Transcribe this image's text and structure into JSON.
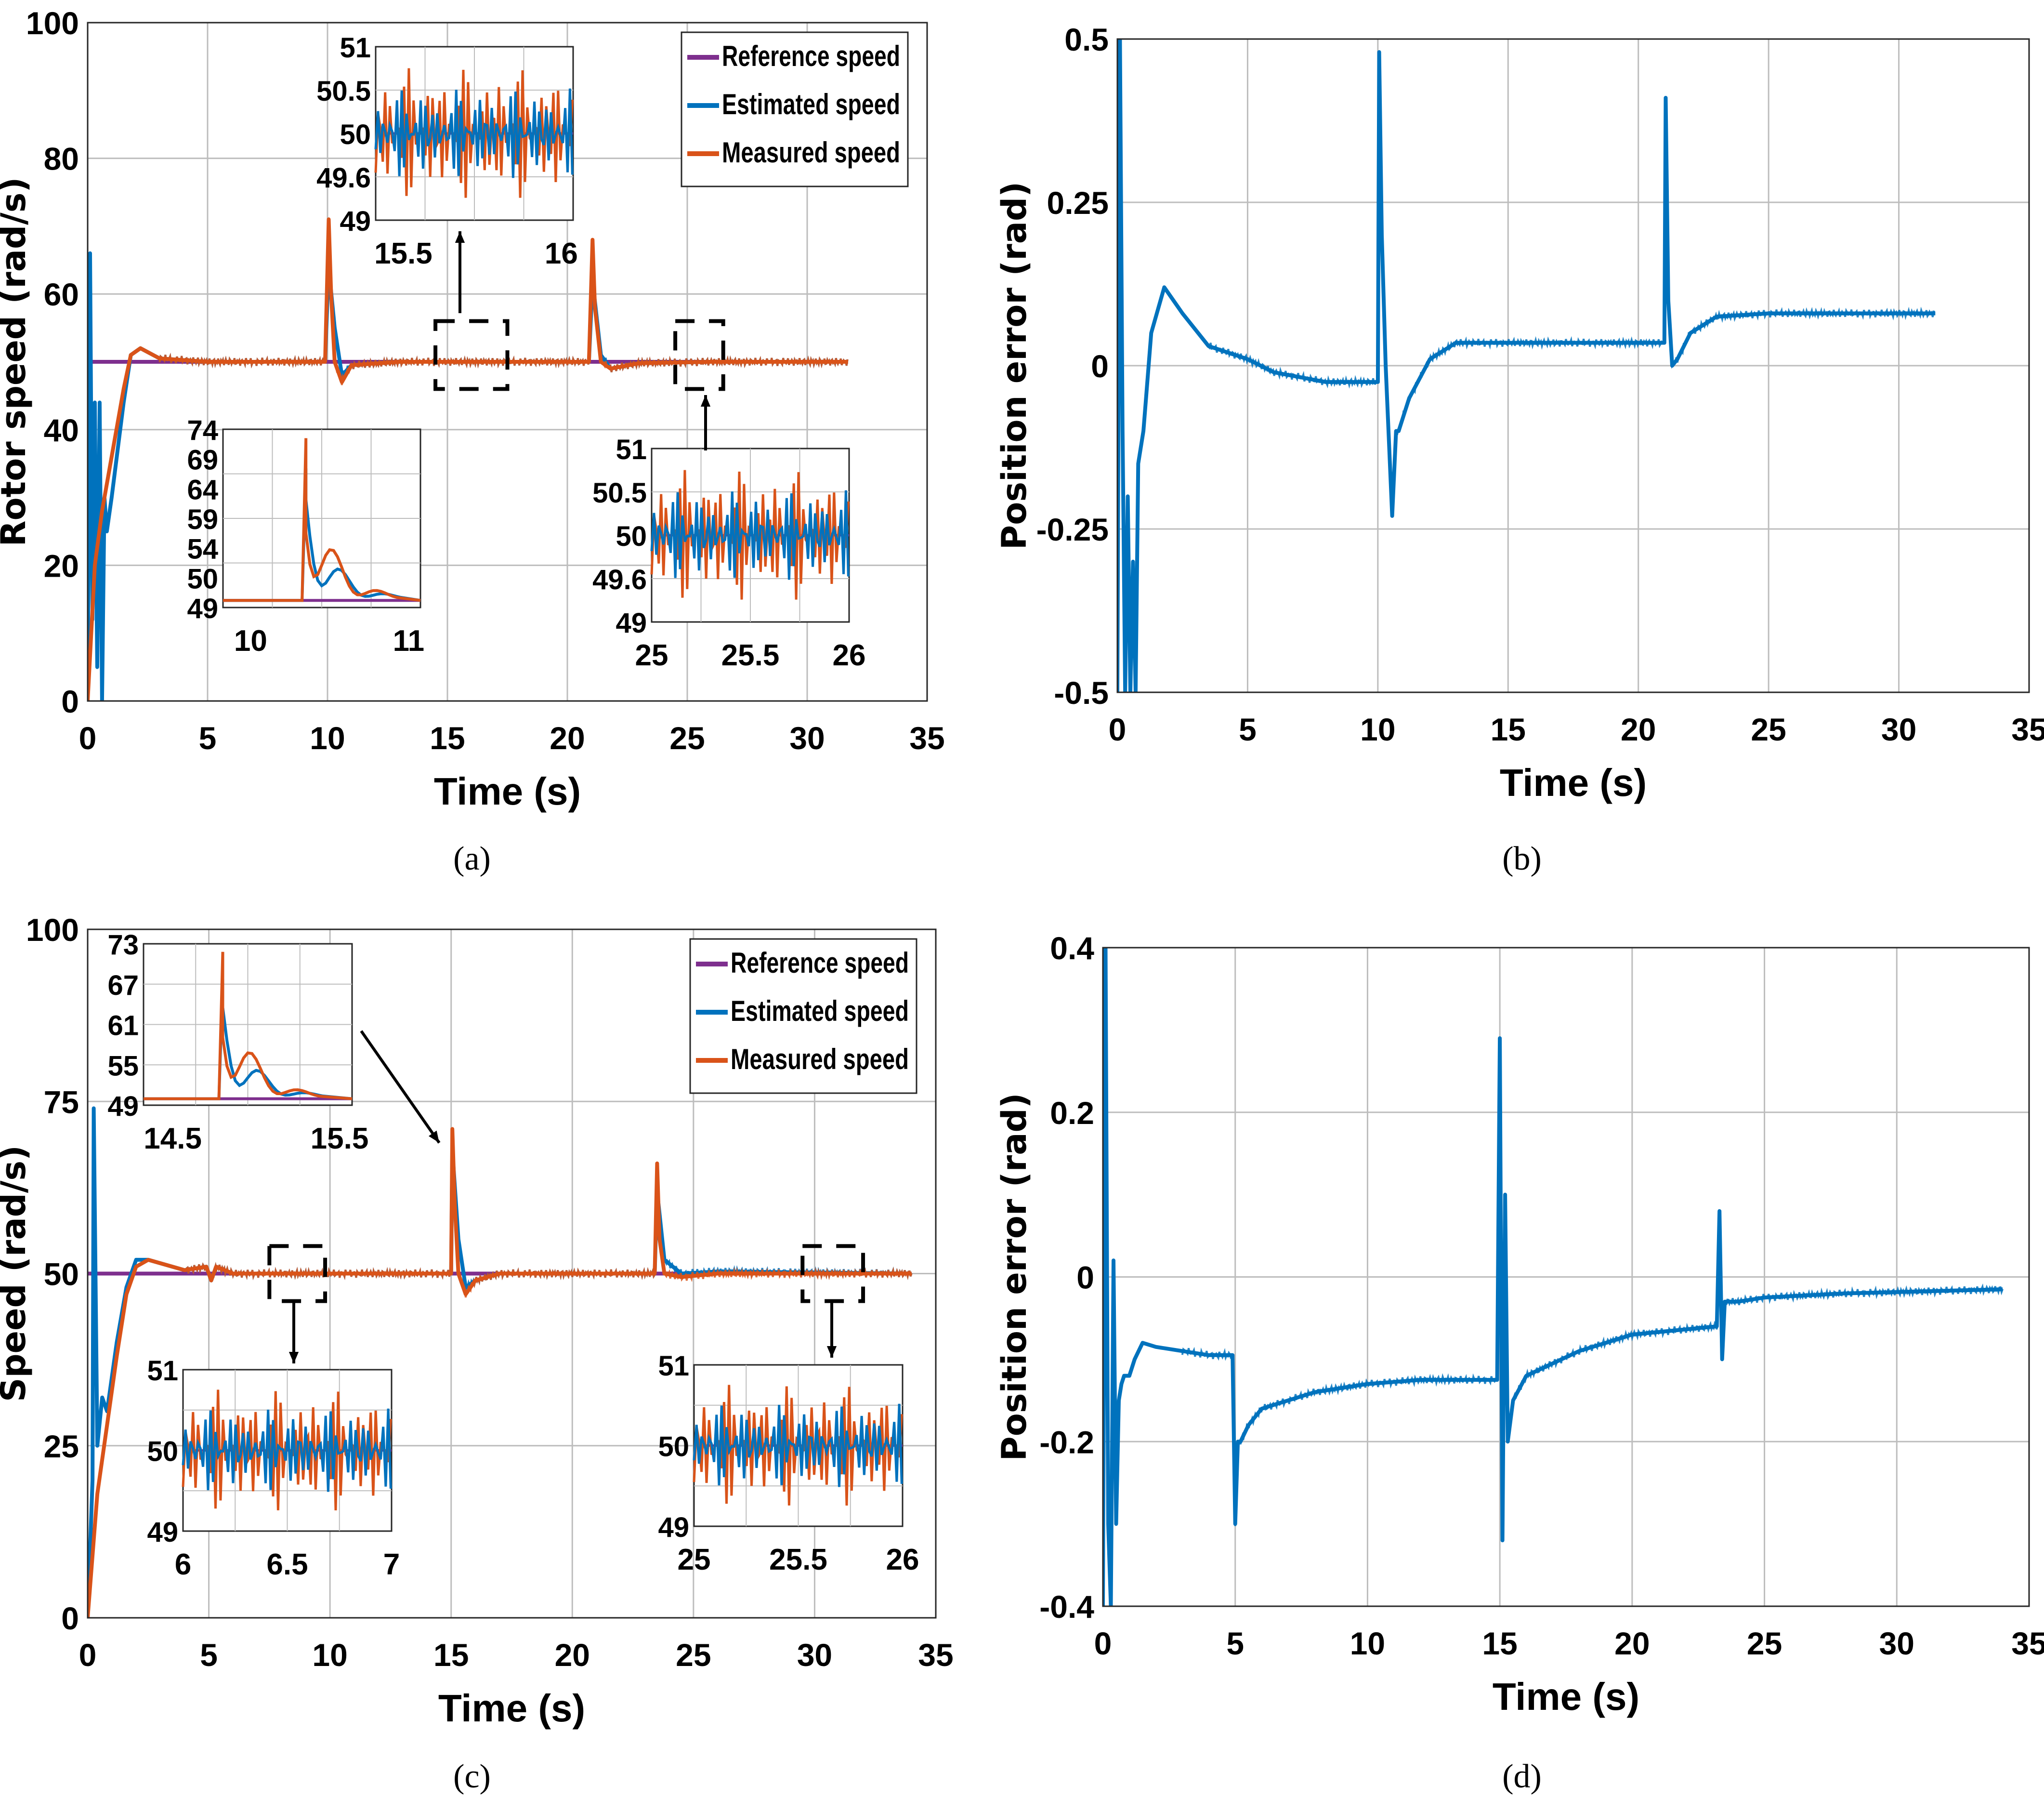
{
  "figure": {
    "panels": [
      "a",
      "b",
      "c",
      "d"
    ]
  },
  "chart_data": [
    {
      "id": "a",
      "caption": "(a)",
      "type": "line",
      "xlabel": "Time (s)",
      "ylabel": "Rotor speed (rad/s)",
      "xlim": [
        0,
        35
      ],
      "ylim": [
        0,
        100
      ],
      "xticks": [
        0,
        5,
        10,
        15,
        20,
        25,
        30,
        35
      ],
      "yticks": [
        0,
        20,
        40,
        60,
        80,
        100
      ],
      "grid": true,
      "legend_position": "top-right",
      "series": [
        {
          "name": "Reference speed",
          "color": "#7E2F8E",
          "x": [
            0,
            10,
            10.01,
            21,
            21.01,
            31.7
          ],
          "y": [
            50,
            50,
            50,
            50,
            50,
            50
          ]
        },
        {
          "name": "Estimated speed",
          "color": "#0072BD",
          "x": [
            0,
            0.1,
            0.2,
            0.3,
            0.4,
            0.5,
            0.6,
            0.7,
            0.8,
            1.0,
            1.5,
            1.8,
            2.2,
            3,
            5,
            9.9,
            10.05,
            10.3,
            10.6,
            11,
            13,
            20.9,
            21.05,
            21.4,
            21.8,
            23,
            26,
            31.7
          ],
          "y": [
            0,
            66,
            12,
            44,
            5,
            44,
            0,
            30,
            25,
            30,
            44,
            51,
            52,
            50.5,
            50,
            50,
            64,
            55,
            48,
            49.5,
            50,
            50,
            62,
            51,
            49,
            49.8,
            50,
            50
          ]
        },
        {
          "name": "Measured speed",
          "color": "#D95319",
          "x": [
            0,
            0.3,
            0.6,
            1.0,
            1.5,
            1.8,
            2.2,
            3,
            5,
            9.9,
            10.05,
            10.15,
            10.3,
            10.6,
            11,
            13,
            20.9,
            21.05,
            21.15,
            21.4,
            21.8,
            23,
            26,
            31.7
          ],
          "y": [
            0,
            20,
            28,
            36,
            46,
            51,
            52,
            50.5,
            50,
            50,
            71,
            60,
            50,
            47,
            49.5,
            50,
            50,
            68,
            58,
            50,
            49,
            49.8,
            50,
            50
          ]
        }
      ],
      "zoom_markers": [
        {
          "x": [
            14.5,
            17.5
          ],
          "y": [
            46,
            56
          ]
        },
        {
          "x": [
            24.5,
            26.5
          ],
          "y": [
            46,
            56
          ]
        }
      ],
      "insets": [
        {
          "position": "top-middle",
          "xticks": [
            "15.5",
            "16"
          ],
          "yticks": [
            "51",
            "50.5",
            "50",
            "49.6",
            "49"
          ],
          "ylim": [
            49,
            51
          ]
        },
        {
          "position": "bottom-left",
          "xticks": [
            "10",
            "11"
          ],
          "yticks": [
            "74",
            "69",
            "64",
            "59",
            "54",
            "50",
            "49"
          ],
          "ylim": [
            49,
            74
          ]
        },
        {
          "position": "bottom-right",
          "xticks": [
            "25",
            "25.5",
            "26"
          ],
          "yticks": [
            "51",
            "50.5",
            "50",
            "49.6",
            "49"
          ],
          "ylim": [
            49,
            51
          ]
        }
      ]
    },
    {
      "id": "b",
      "caption": "(b)",
      "type": "line",
      "xlabel": "Time (s)",
      "ylabel": "Position error (rad)",
      "xlim": [
        0,
        35
      ],
      "ylim": [
        -0.5,
        0.5
      ],
      "xticks": [
        0,
        5,
        10,
        15,
        20,
        25,
        30,
        35
      ],
      "yticks": [
        -0.5,
        -0.25,
        0,
        0.25,
        0.5
      ],
      "ytick_labels": [
        "-0.5",
        "-0.25",
        "0",
        "0.25",
        "0.5"
      ],
      "grid": true,
      "series": [
        {
          "name": "Position error",
          "color": "#0072BD",
          "x": [
            0,
            0.1,
            0.2,
            0.3,
            0.4,
            0.5,
            0.6,
            0.7,
            0.8,
            1.0,
            1.3,
            1.8,
            2.5,
            3.5,
            5,
            6,
            8,
            10,
            10.05,
            10.15,
            10.3,
            10.55,
            10.7,
            10.8,
            11.2,
            12,
            13,
            15,
            21,
            21.05,
            21.15,
            21.3,
            21.5,
            22,
            23,
            25,
            31.4
          ],
          "y": [
            -0.5,
            0.5,
            -0.1,
            -0.5,
            -0.2,
            -0.5,
            -0.3,
            -0.5,
            -0.15,
            -0.1,
            0.05,
            0.12,
            0.08,
            0.03,
            0.01,
            -0.01,
            -0.025,
            -0.025,
            0.48,
            0.2,
            0.0,
            -0.23,
            -0.1,
            -0.1,
            -0.05,
            0.01,
            0.035,
            0.035,
            0.035,
            0.41,
            0.1,
            0.0,
            0.01,
            0.05,
            0.075,
            0.08,
            0.08
          ]
        }
      ]
    },
    {
      "id": "c",
      "caption": "(c)",
      "type": "line",
      "xlabel": "Time (s)",
      "ylabel": "Speed (rad/s)",
      "xlim": [
        0,
        35
      ],
      "ylim": [
        0,
        100
      ],
      "xticks": [
        0,
        5,
        10,
        15,
        20,
        25,
        30,
        35
      ],
      "yticks": [
        0,
        25,
        50,
        75,
        100
      ],
      "grid": true,
      "legend_position": "top-right",
      "series": [
        {
          "name": "Reference speed",
          "color": "#7E2F8E",
          "x": [
            0,
            15,
            15.01,
            23.5,
            23.51,
            34
          ],
          "y": [
            50,
            50,
            50,
            50,
            50,
            50
          ]
        },
        {
          "name": "Estimated speed",
          "color": "#0072BD",
          "x": [
            0,
            0.2,
            0.25,
            0.4,
            0.6,
            0.8,
            1.2,
            1.6,
            2.0,
            2.5,
            4,
            4.9,
            5.1,
            5.3,
            6,
            15,
            15.05,
            15.3,
            15.6,
            16,
            17,
            23.4,
            23.5,
            23.8,
            24.5,
            26,
            34
          ],
          "y": [
            0,
            20,
            74,
            25,
            32,
            30,
            40,
            48,
            52,
            52,
            50.5,
            51,
            49,
            51,
            50,
            50,
            68,
            55,
            48,
            49,
            50,
            50,
            62,
            52,
            50,
            50.3,
            50
          ]
        },
        {
          "name": "Measured speed",
          "color": "#D95319",
          "x": [
            0,
            0.4,
            0.8,
            1.2,
            1.6,
            2.0,
            2.5,
            4,
            4.9,
            5.1,
            5.3,
            6,
            15,
            15.05,
            15.15,
            15.3,
            15.6,
            16,
            17,
            23.4,
            23.5,
            23.6,
            23.8,
            24.5,
            26,
            34
          ],
          "y": [
            0,
            18,
            28,
            38,
            47,
            51,
            52,
            50.5,
            51,
            49,
            51,
            50,
            50,
            71,
            60,
            50,
            47,
            49,
            50,
            50,
            66,
            55,
            50,
            49.5,
            50,
            50
          ]
        }
      ],
      "zoom_markers": [
        {
          "x": [
            7.5,
            9.8
          ],
          "y": [
            46,
            54
          ]
        },
        {
          "x": [
            29.5,
            32
          ],
          "y": [
            46,
            54
          ]
        }
      ],
      "insets": [
        {
          "position": "top-left",
          "xticks": [
            "14.5",
            "15.5"
          ],
          "yticks": [
            "73",
            "67",
            "61",
            "55",
            "49"
          ],
          "ylim": [
            49,
            73
          ]
        },
        {
          "position": "bottom-left",
          "xticks": [
            "6",
            "6.5",
            "7"
          ],
          "yticks": [
            "51",
            "50",
            "49"
          ],
          "ylim": [
            49,
            51
          ]
        },
        {
          "position": "bottom-right",
          "xticks": [
            "25",
            "25.5",
            "26"
          ],
          "yticks": [
            "51",
            "50",
            "49"
          ],
          "ylim": [
            49,
            51
          ]
        }
      ]
    },
    {
      "id": "d",
      "caption": "(d)",
      "type": "line",
      "xlabel": "Time (s)",
      "ylabel": "Position error (rad)",
      "xlim": [
        0,
        35
      ],
      "ylim": [
        -0.4,
        0.4
      ],
      "xticks": [
        0,
        5,
        10,
        15,
        20,
        25,
        30,
        35
      ],
      "yticks": [
        -0.4,
        -0.2,
        0,
        0.2,
        0.4
      ],
      "ytick_labels": [
        "-0.4",
        "-0.2",
        "0",
        "0.2",
        "0.4"
      ],
      "grid": true,
      "series": [
        {
          "name": "Position error",
          "color": "#0072BD",
          "x": [
            0,
            0.1,
            0.2,
            0.3,
            0.4,
            0.5,
            0.6,
            0.7,
            0.8,
            1.0,
            1.2,
            1.5,
            2.0,
            3,
            4,
            4.9,
            5.0,
            5.1,
            5.2,
            5.5,
            6,
            7,
            8,
            10,
            12,
            14.9,
            15.0,
            15.1,
            15.2,
            15.3,
            15.5,
            16,
            18,
            20,
            23.2,
            23.3,
            23.4,
            23.5,
            24,
            25,
            28,
            34
          ],
          "y": [
            -0.4,
            0.4,
            -0.3,
            -0.4,
            0.02,
            -0.3,
            -0.15,
            -0.13,
            -0.12,
            -0.12,
            -0.1,
            -0.08,
            -0.085,
            -0.09,
            -0.095,
            -0.095,
            -0.3,
            -0.2,
            -0.2,
            -0.18,
            -0.16,
            -0.15,
            -0.14,
            -0.13,
            -0.125,
            -0.125,
            0.29,
            -0.32,
            0.1,
            -0.2,
            -0.15,
            -0.12,
            -0.09,
            -0.07,
            -0.06,
            0.08,
            -0.1,
            -0.03,
            -0.03,
            -0.025,
            -0.02,
            -0.015
          ]
        }
      ]
    }
  ]
}
